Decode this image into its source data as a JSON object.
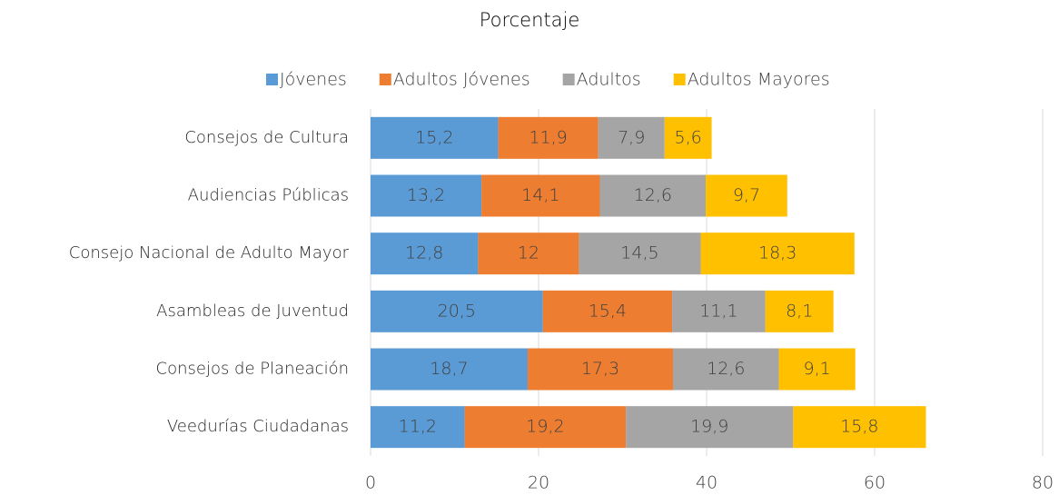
{
  "chart_data": {
    "type": "stacked_barh",
    "title": "Porcentaje",
    "categories": [
      "Consejos de Cultura",
      "Audiencias Públicas",
      "Consejo Nacional de Adulto Mayor",
      "Asambleas de Juventud",
      "Consejos de Planeación",
      "Veedurías Ciudadanas"
    ],
    "series": [
      {
        "name": "Jóvenes",
        "color": "#5b9bd5",
        "values": [
          15.2,
          13.2,
          12.8,
          20.5,
          18.7,
          11.2
        ],
        "value_labels": [
          "15,2",
          "13,2",
          "12,8",
          "20,5",
          "18,7",
          "11,2"
        ]
      },
      {
        "name": "Adultos Jóvenes",
        "color": "#ed7d31",
        "values": [
          11.9,
          14.1,
          12,
          15.4,
          17.3,
          19.2
        ],
        "value_labels": [
          "11,9",
          "14,1",
          "12",
          "15,4",
          "17,3",
          "19,2"
        ]
      },
      {
        "name": "Adultos",
        "color": "#a5a5a5",
        "values": [
          7.9,
          12.6,
          14.5,
          11.1,
          12.6,
          19.9
        ],
        "value_labels": [
          "7,9",
          "12,6",
          "14,5",
          "11,1",
          "12,6",
          "19,9"
        ]
      },
      {
        "name": "Adultos Mayores",
        "color": "#ffc000",
        "values": [
          5.6,
          9.7,
          18.3,
          8.1,
          9.1,
          15.8
        ],
        "value_labels": [
          "5,6",
          "9,7",
          "18,3",
          "8,1",
          "9,1",
          "15,8"
        ]
      }
    ],
    "xlim": [
      0,
      80
    ],
    "xticks": [
      0,
      20,
      40,
      60,
      80
    ],
    "grid": true,
    "legend": "top"
  }
}
